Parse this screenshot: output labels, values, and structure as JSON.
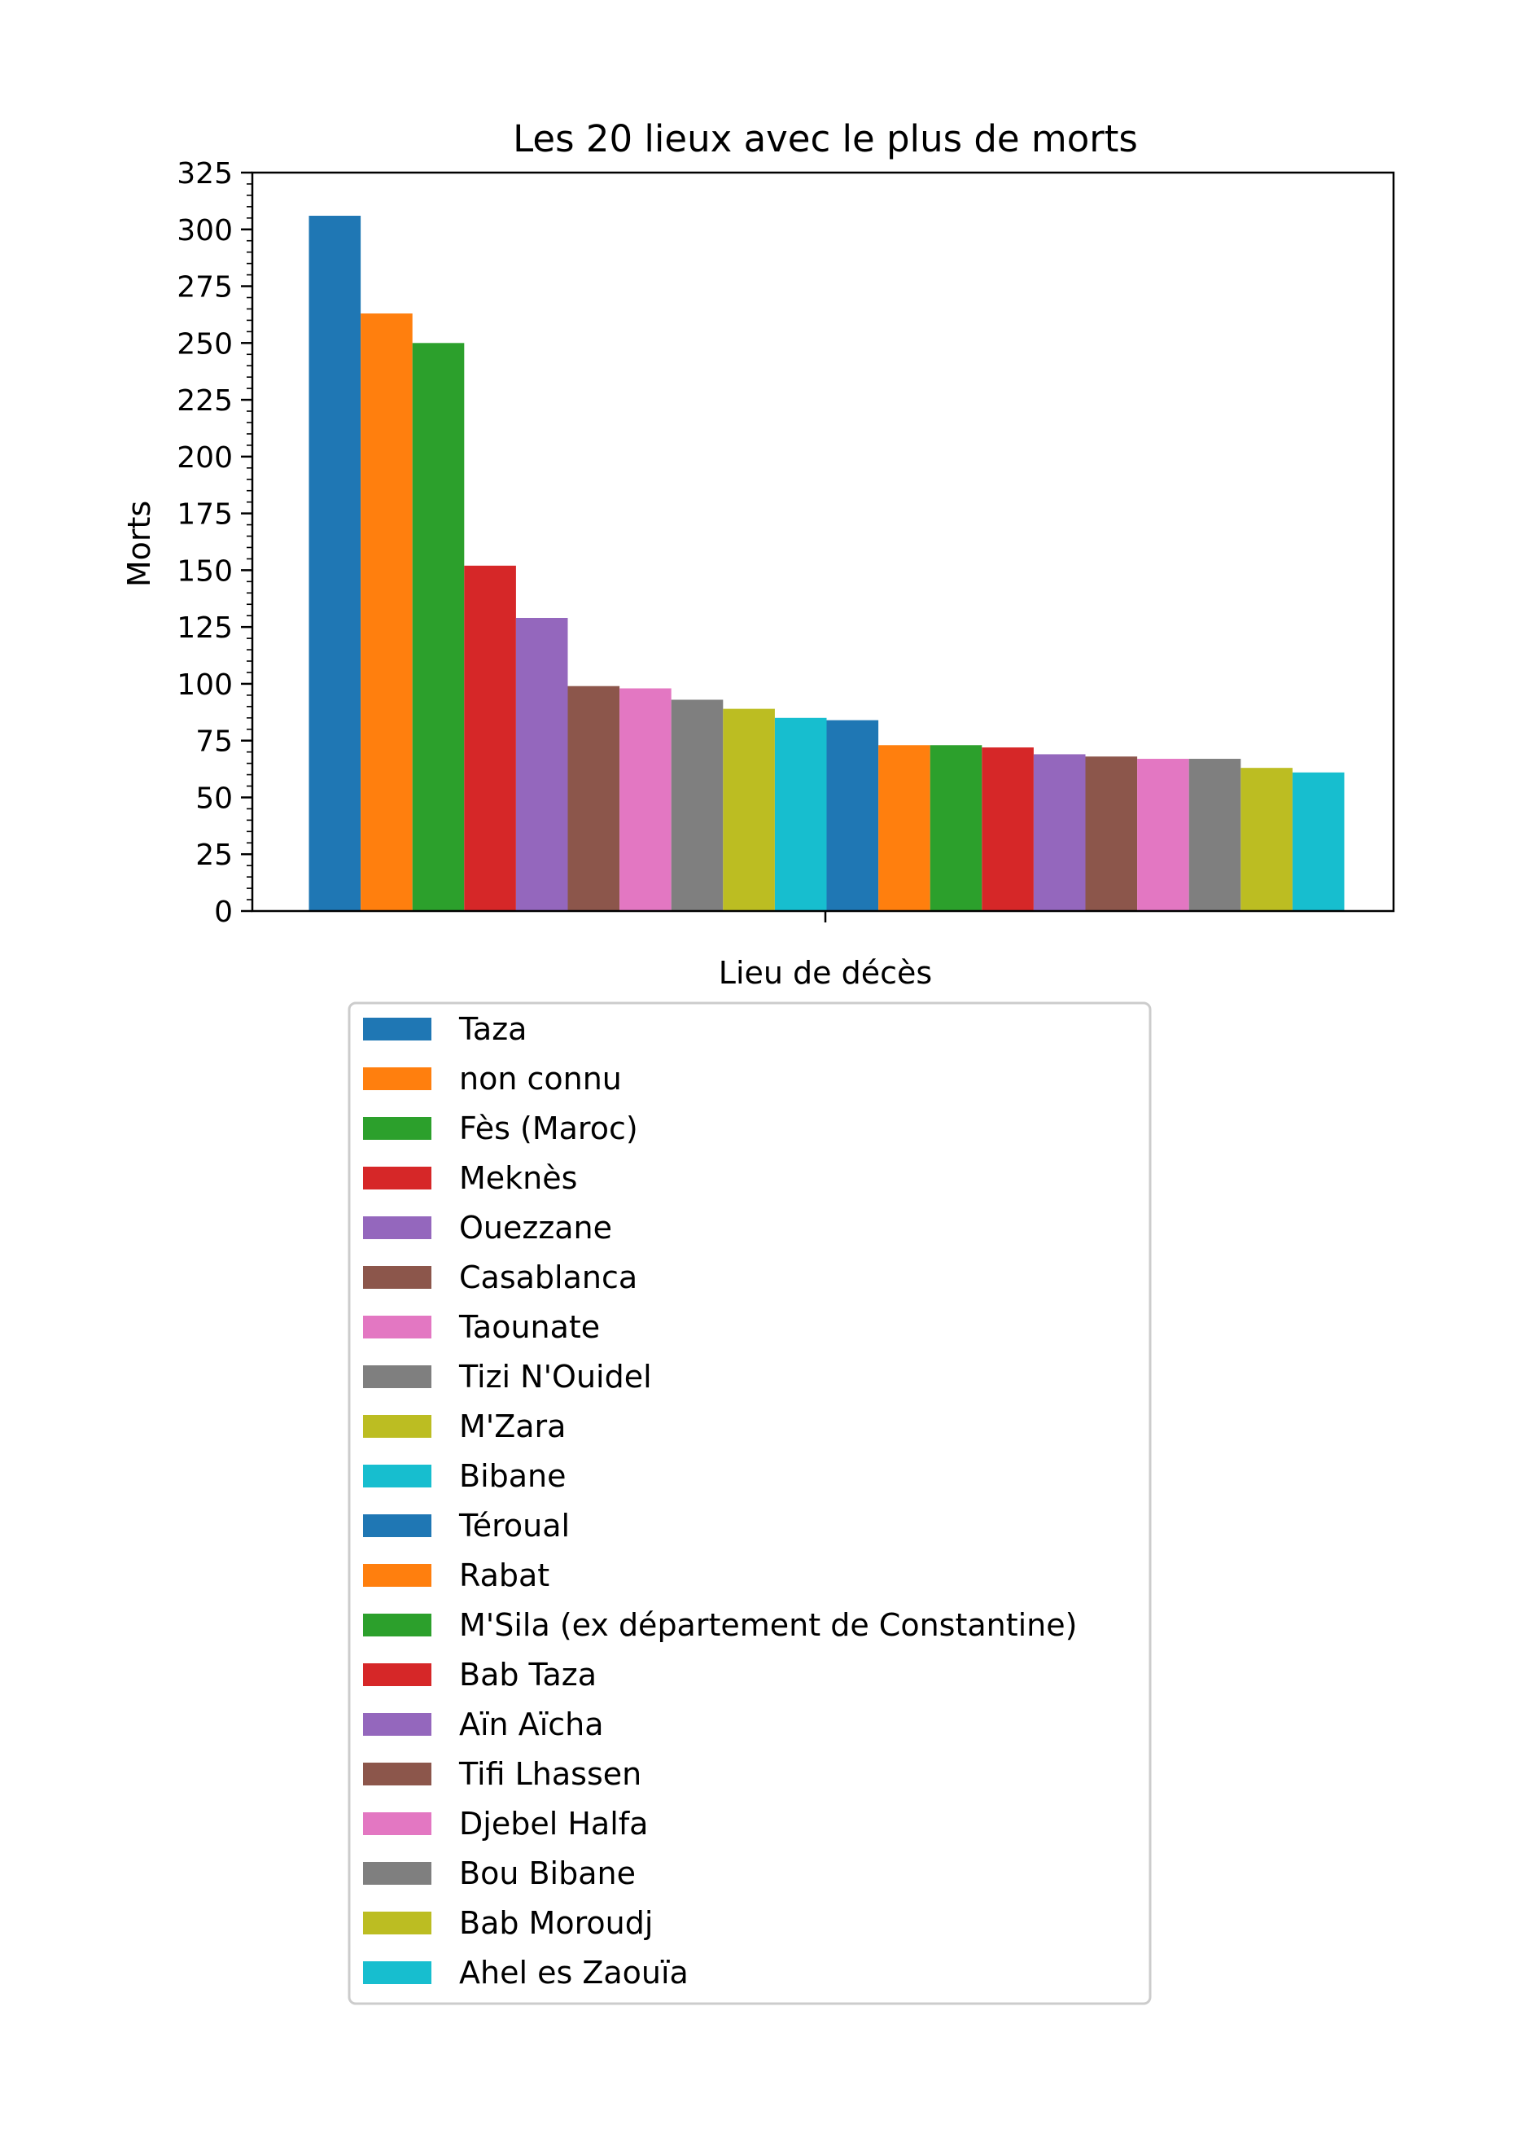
{
  "chart_data": {
    "type": "bar",
    "title": "Les 20 lieux avec le plus de morts",
    "xlabel": "Lieu de décès",
    "ylabel": "Morts",
    "ylim": [
      0,
      325
    ],
    "yticks": [
      0,
      25,
      50,
      75,
      100,
      125,
      150,
      175,
      200,
      225,
      250,
      275,
      300,
      325
    ],
    "grid": false,
    "legend_position": "below",
    "series": [
      {
        "name": "Taza",
        "value": 306,
        "color": "#1f77b4"
      },
      {
        "name": "non connu",
        "value": 263,
        "color": "#ff7f0e"
      },
      {
        "name": "Fès (Maroc)",
        "value": 250,
        "color": "#2ca02c"
      },
      {
        "name": "Meknès",
        "value": 152,
        "color": "#d62728"
      },
      {
        "name": "Ouezzane",
        "value": 129,
        "color": "#9467bd"
      },
      {
        "name": "Casablanca",
        "value": 99,
        "color": "#8c564b"
      },
      {
        "name": "Taounate",
        "value": 98,
        "color": "#e377c2"
      },
      {
        "name": "Tizi N'Ouidel",
        "value": 93,
        "color": "#7f7f7f"
      },
      {
        "name": "M'Zara",
        "value": 89,
        "color": "#bcbd22"
      },
      {
        "name": "Bibane",
        "value": 85,
        "color": "#17becf"
      },
      {
        "name": "Téroual",
        "value": 84,
        "color": "#1f77b4"
      },
      {
        "name": "Rabat",
        "value": 73,
        "color": "#ff7f0e"
      },
      {
        "name": "M'Sila (ex département de Constantine)",
        "value": 73,
        "color": "#2ca02c"
      },
      {
        "name": "Bab Taza",
        "value": 72,
        "color": "#d62728"
      },
      {
        "name": "Aïn Aïcha",
        "value": 69,
        "color": "#9467bd"
      },
      {
        "name": "Tifi Lhassen",
        "value": 68,
        "color": "#8c564b"
      },
      {
        "name": "Djebel Halfa",
        "value": 67,
        "color": "#e377c2"
      },
      {
        "name": "Bou Bibane",
        "value": 67,
        "color": "#7f7f7f"
      },
      {
        "name": "Bab Moroudj",
        "value": 63,
        "color": "#bcbd22"
      },
      {
        "name": "Ahel es Zaouïa",
        "value": 61,
        "color": "#17becf"
      }
    ]
  }
}
